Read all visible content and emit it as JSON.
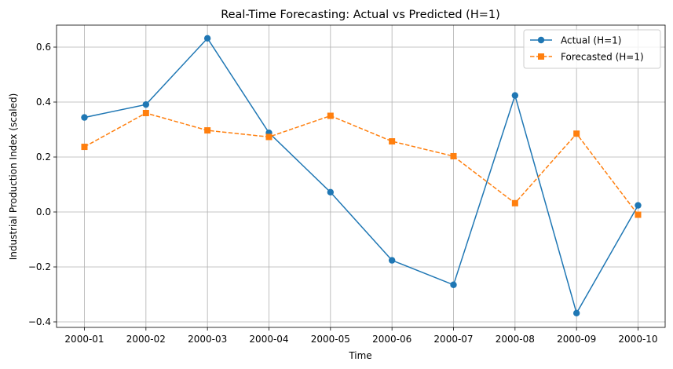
{
  "chart_data": {
    "type": "line",
    "title": "Real-Time Forecasting: Actual vs Predicted (H=1)",
    "xlabel": "Time",
    "ylabel": "Industrial Production Index (scaled)",
    "categories": [
      "2000-01",
      "2000-02",
      "2000-03",
      "2000-04",
      "2000-05",
      "2000-06",
      "2000-07",
      "2000-08",
      "2000-09",
      "2000-10"
    ],
    "ylim": [
      -0.42,
      0.68
    ],
    "yticks": [
      -0.4,
      -0.2,
      0.0,
      0.2,
      0.4,
      0.6
    ],
    "ytick_labels": [
      "−0.4",
      "−0.2",
      "0.0",
      "0.2",
      "0.4",
      "0.6"
    ],
    "grid": true,
    "legend_position": "top-right",
    "series": [
      {
        "name": "Actual (H=1)",
        "color": "#1f77b4",
        "line_style": "solid",
        "marker": "circle",
        "values": [
          0.344,
          0.391,
          0.632,
          0.288,
          0.072,
          -0.176,
          -0.265,
          0.424,
          -0.368,
          0.024
        ]
      },
      {
        "name": "Forecasted (H=1)",
        "color": "#ff7f0e",
        "line_style": "dashed",
        "marker": "square",
        "values": [
          0.237,
          0.36,
          0.297,
          0.273,
          0.35,
          0.257,
          0.203,
          0.032,
          0.285,
          -0.01
        ]
      }
    ]
  }
}
